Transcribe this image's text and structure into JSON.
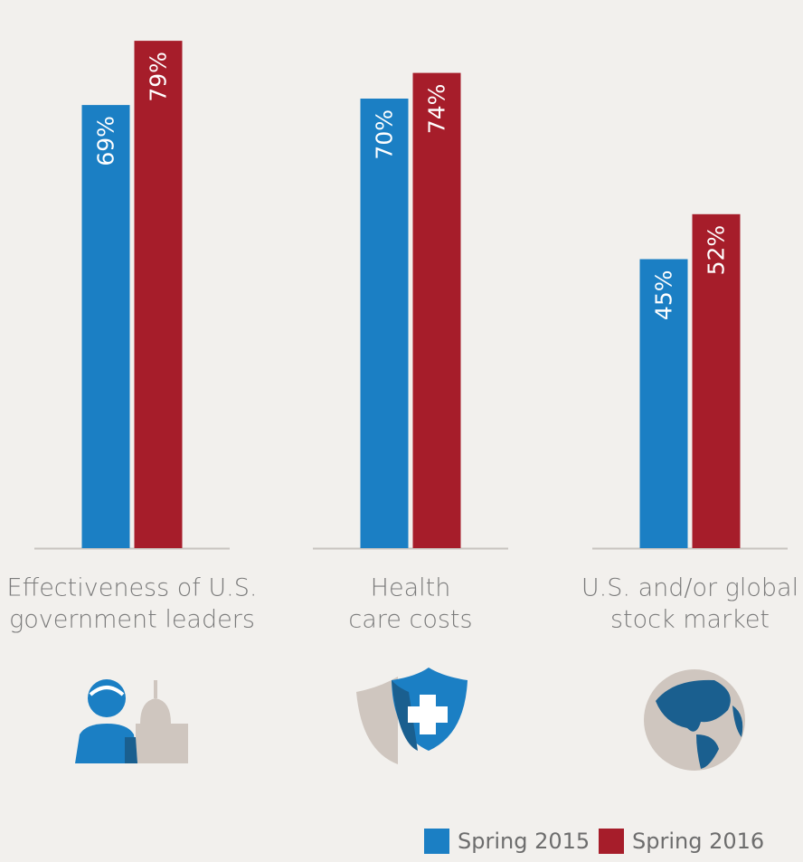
{
  "chart_data": {
    "type": "bar",
    "categories": [
      [
        "Effectiveness of U.S.",
        "government leaders"
      ],
      [
        "Health",
        "care costs"
      ],
      [
        "U.S. and/or global",
        "stock market"
      ]
    ],
    "series": [
      {
        "name": "Spring 2015",
        "color": "#1b7fc4",
        "values": [
          69,
          70,
          45
        ],
        "value_labels": [
          "69%",
          "70%",
          "45%"
        ]
      },
      {
        "name": "Spring 2016",
        "color": "#a61d2a",
        "values": [
          79,
          74,
          52
        ],
        "value_labels": [
          "79%",
          "74%",
          "52%"
        ]
      }
    ]
  }
}
